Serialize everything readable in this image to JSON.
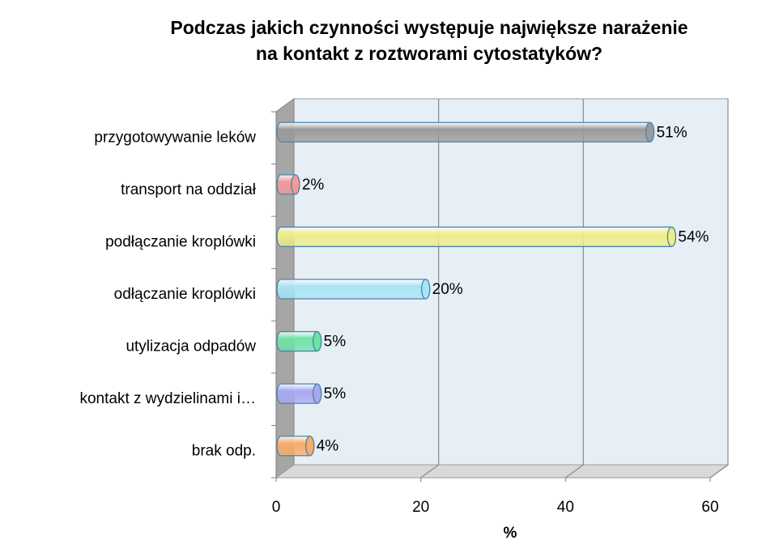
{
  "chart_data": {
    "type": "bar",
    "orientation": "horizontal",
    "title_lines": [
      "Podczas jakich czynności występuje największe narażenie",
      "na kontakt z roztworami cytostatyków?"
    ],
    "xlabel": "%",
    "ylabel": "",
    "xlim": [
      0,
      60
    ],
    "x_ticks": [
      "0",
      "20",
      "40",
      "60"
    ],
    "grid": "vertical",
    "legend": "none",
    "categories": [
      "przygotowywanie leków",
      "transport na oddział",
      "podłączanie kroplówki",
      "odłączanie kroplówki",
      "utylizacja odpadów",
      "kontakt z wydzielinami i…",
      "brak odp."
    ],
    "values": [
      51,
      2,
      54,
      20,
      5,
      5,
      4
    ],
    "data_labels": [
      "51%",
      "2%",
      "54%",
      "20%",
      "5%",
      "5%",
      "4%"
    ],
    "colors": [
      "#9a9a9a",
      "#f09a9a",
      "#eded8a",
      "#a9e4f4",
      "#6fe3a6",
      "#a7a8f2",
      "#f5ad6a"
    ]
  }
}
